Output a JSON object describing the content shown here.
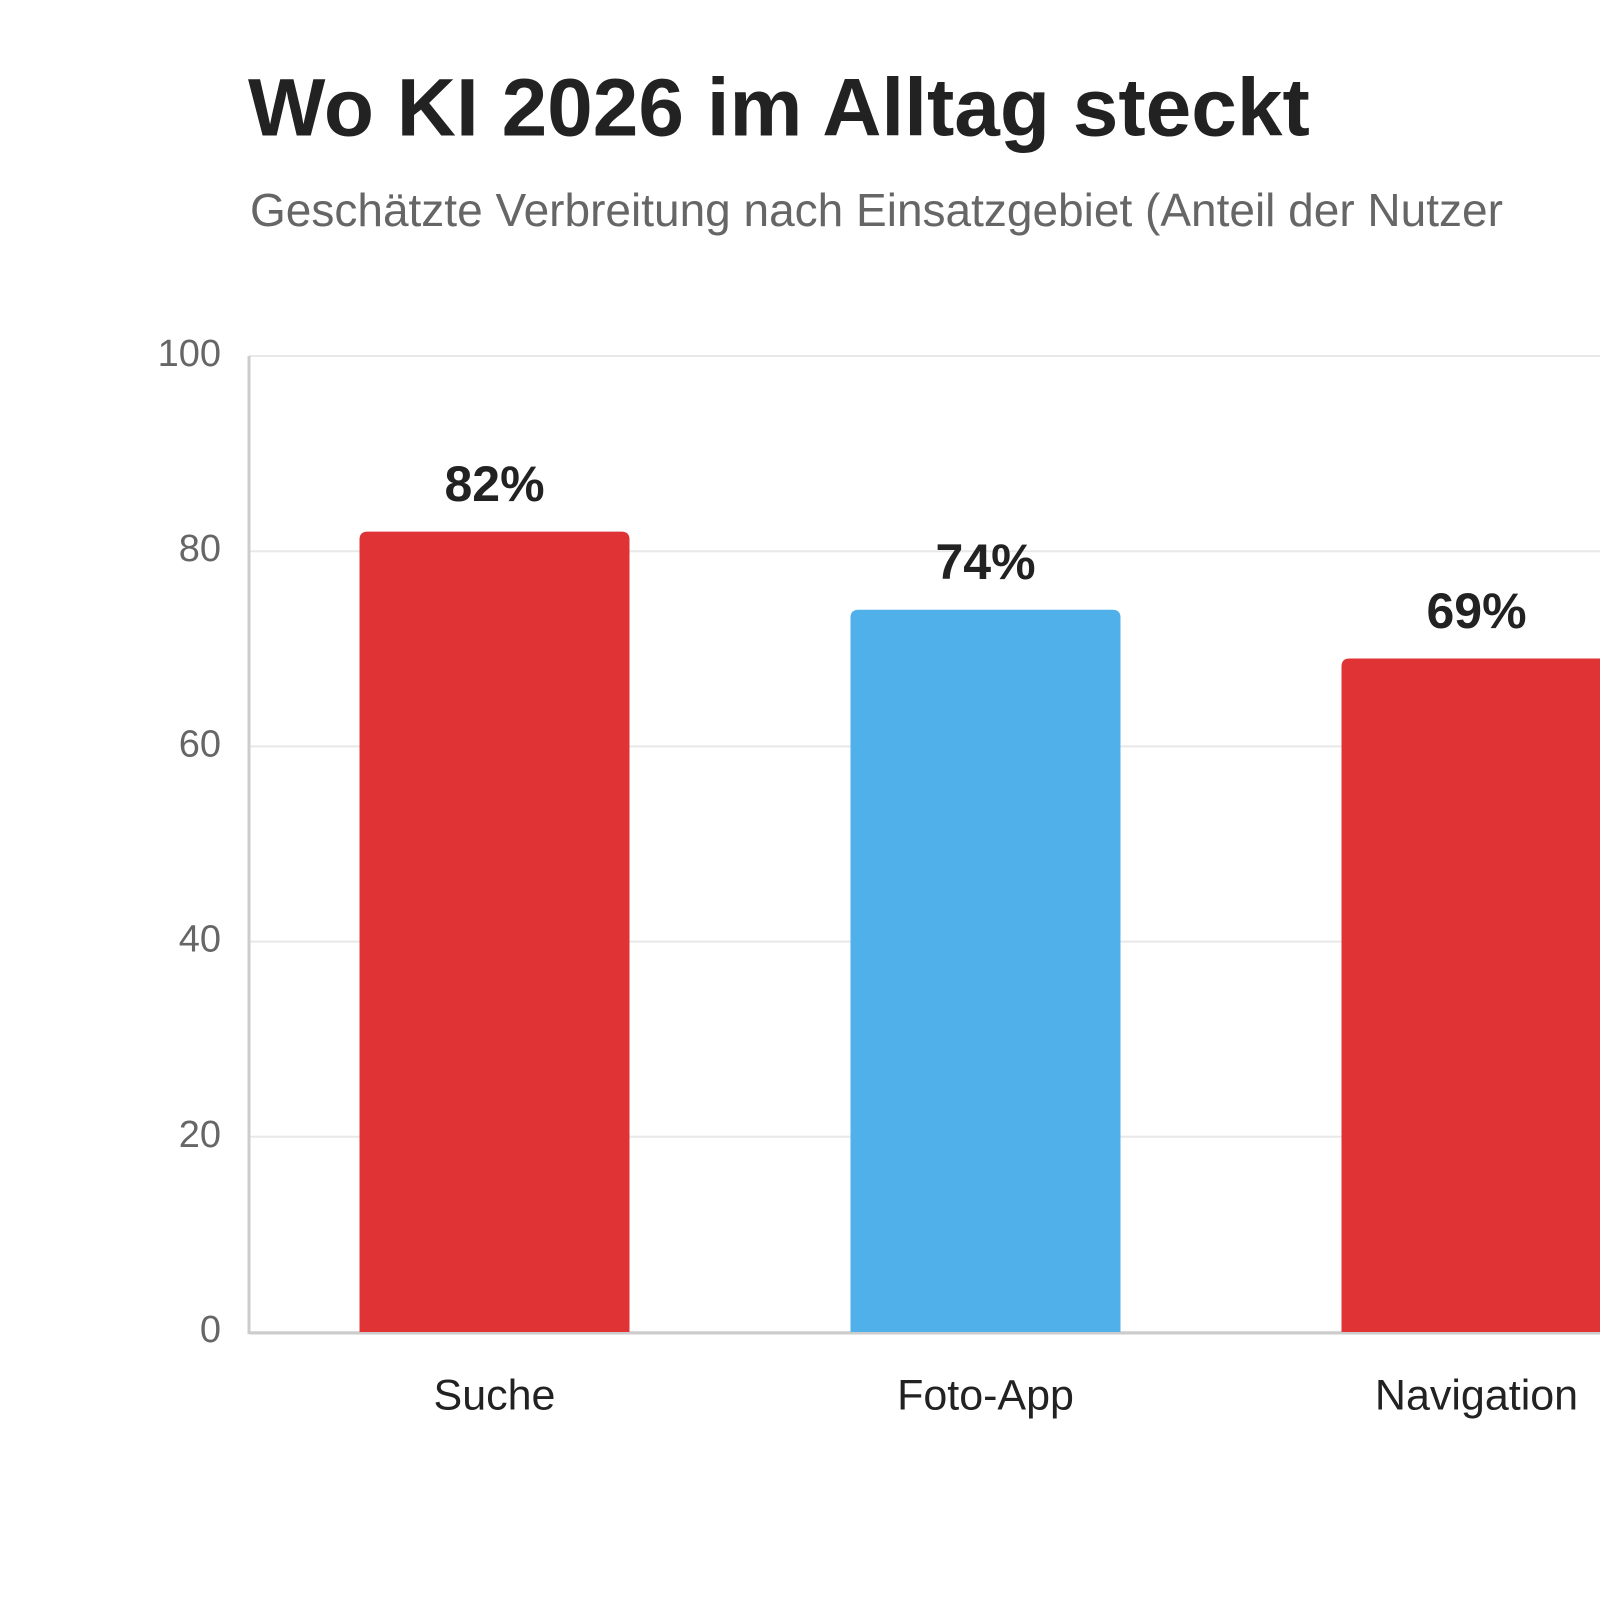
{
  "chart_data": {
    "type": "bar",
    "title": "Wo KI 2026 im Alltag steckt",
    "subtitle": "Geschätzte Verbreitung nach Einsatzgebiet (Anteil der Nutzer",
    "categories": [
      "Suche",
      "Foto-App",
      "Navigation"
    ],
    "values": [
      82,
      74,
      69
    ],
    "value_labels": [
      "82%",
      "74%",
      "69%"
    ],
    "colors": [
      "#e03336",
      "#4fb0ea",
      "#e03336"
    ],
    "ylim": [
      0,
      100
    ],
    "yticks": [
      0,
      20,
      40,
      60,
      80,
      100
    ],
    "grid": true
  }
}
